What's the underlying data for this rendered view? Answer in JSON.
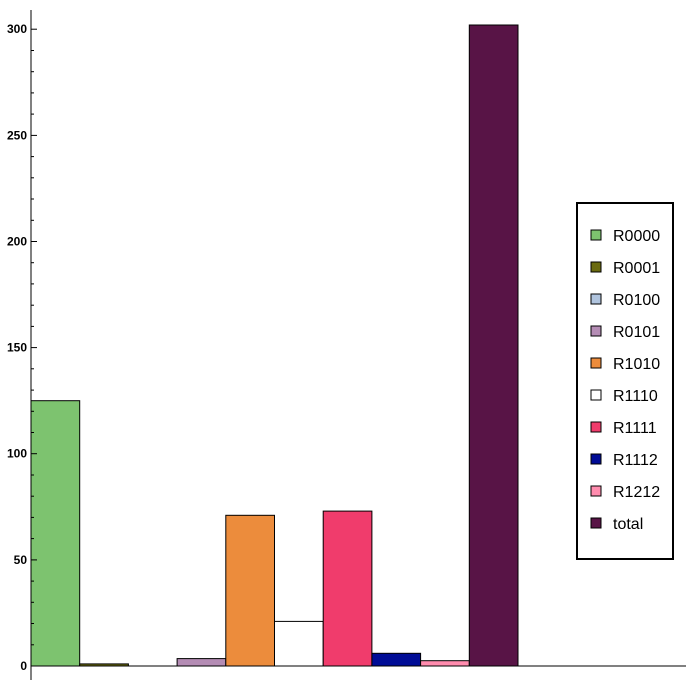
{
  "chart_data": {
    "type": "bar",
    "title": "",
    "xlabel": "",
    "ylabel": "",
    "ylim": [
      0,
      300
    ],
    "yticks": [
      0,
      50,
      100,
      150,
      200,
      250,
      300
    ],
    "grid": false,
    "legend_position": "right",
    "series": [
      {
        "name": "R0000",
        "value": 125,
        "color": "#7dc36f"
      },
      {
        "name": "R0001",
        "value": 1,
        "color": "#6b6b10"
      },
      {
        "name": "R0100",
        "value": 0,
        "color": "#b0c4de"
      },
      {
        "name": "R0101",
        "value": 3.5,
        "color": "#b48cb4"
      },
      {
        "name": "R1010",
        "value": 71,
        "color": "#ec8c3c"
      },
      {
        "name": "R1110",
        "value": 21,
        "color": "#ffffff"
      },
      {
        "name": "R1111",
        "value": 73,
        "color": "#f03c6c"
      },
      {
        "name": "R1112",
        "value": 6,
        "color": "#000c96"
      },
      {
        "name": "R1212",
        "value": 2.5,
        "color": "#ff8cae"
      },
      {
        "name": "total",
        "value": 302,
        "color": "#581446"
      }
    ]
  }
}
